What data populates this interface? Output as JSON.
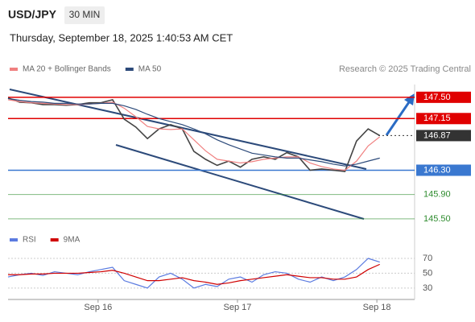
{
  "chart_data": [
    {
      "type": "line",
      "title": "USD/JPY",
      "timeframe": "30 MIN",
      "subtitle": "Thursday, September 18, 2025 1:40:53 AM CET",
      "source": "Research © 2025 Trading Central",
      "x": [
        0,
        4,
        8,
        12,
        16,
        20,
        24,
        28,
        32,
        36,
        40,
        44,
        48,
        52,
        56,
        60,
        64,
        68,
        72,
        76,
        80,
        84,
        88,
        92,
        96,
        100,
        104,
        108,
        112,
        116,
        120,
        124,
        128
      ],
      "xlim": [
        0,
        140
      ],
      "xticks": [
        {
          "value": 31,
          "label": "Sep 16"
        },
        {
          "value": 79,
          "label": "Sep 17"
        },
        {
          "value": 127,
          "label": "Sep 18"
        }
      ],
      "ylim": [
        145.26,
        147.71
      ],
      "series": [
        {
          "color": "#444444",
          "values": [
            147.49,
            147.42,
            147.41,
            147.38,
            147.38,
            147.37,
            147.38,
            147.41,
            147.41,
            147.46,
            147.14,
            147.01,
            146.82,
            146.98,
            147.05,
            146.98,
            146.61,
            146.48,
            146.38,
            146.45,
            146.35,
            146.48,
            146.52,
            146.48,
            146.59,
            146.52,
            146.3,
            146.32,
            146.3,
            146.28,
            146.78,
            146.98,
            146.87
          ]
        },
        {
          "name": "MA 20 + Bollinger Bands",
          "color": "#f08080",
          "values": [
            147.46,
            147.43,
            147.41,
            147.4,
            147.39,
            147.38,
            147.38,
            147.39,
            147.4,
            147.42,
            147.32,
            147.18,
            147.02,
            146.98,
            146.97,
            146.98,
            146.8,
            146.62,
            146.48,
            146.45,
            146.42,
            146.44,
            146.48,
            146.5,
            146.52,
            146.52,
            146.42,
            146.36,
            146.32,
            146.3,
            146.45,
            146.7,
            146.85
          ]
        },
        {
          "name": "MA 50",
          "color": "#2c4a7a",
          "values": [
            147.48,
            147.45,
            147.43,
            147.42,
            147.4,
            147.4,
            147.39,
            147.39,
            147.4,
            147.4,
            147.36,
            147.3,
            147.22,
            147.15,
            147.1,
            147.05,
            146.98,
            146.9,
            146.8,
            146.72,
            146.65,
            146.58,
            146.55,
            146.52,
            146.5,
            146.5,
            146.47,
            146.44,
            146.4,
            146.37,
            146.4,
            146.45,
            146.5
          ]
        }
      ],
      "levels": [
        {
          "value": 147.5,
          "label": "147.50",
          "color": "#e00000",
          "boxed": true
        },
        {
          "value": 147.15,
          "label": "147.15",
          "color": "#e00000",
          "boxed": true
        },
        {
          "value": 146.87,
          "label": "146.87",
          "color": "#333333",
          "boxed": true
        },
        {
          "value": 146.3,
          "label": "146.30",
          "color": "#3a78d0",
          "boxed": true
        },
        {
          "value": 145.9,
          "label": "145.90",
          "color": "#2e8b2e",
          "boxed": false
        },
        {
          "value": 145.5,
          "label": "145.50",
          "color": "#2e8b2e",
          "boxed": false
        }
      ]
    },
    {
      "type": "line",
      "x": [
        0,
        4,
        8,
        12,
        16,
        20,
        24,
        28,
        32,
        36,
        40,
        44,
        48,
        52,
        56,
        60,
        64,
        68,
        72,
        76,
        80,
        84,
        88,
        92,
        96,
        100,
        104,
        108,
        112,
        116,
        120,
        124,
        128
      ],
      "xlim": [
        0,
        140
      ],
      "ylim": [
        19,
        76.5
      ],
      "yticks": [
        30,
        50,
        70
      ],
      "series": [
        {
          "name": "RSI",
          "color": "#5b7be0",
          "values": [
            45,
            48,
            50,
            47,
            52,
            50,
            48,
            52,
            55,
            58,
            40,
            35,
            30,
            45,
            50,
            42,
            30,
            35,
            32,
            42,
            45,
            38,
            48,
            52,
            50,
            42,
            38,
            45,
            40,
            45,
            55,
            70,
            65
          ]
        },
        {
          "name": "9MA",
          "color": "#d00000",
          "values": [
            48,
            48,
            49,
            49,
            50,
            50,
            50,
            51,
            52,
            54,
            50,
            45,
            40,
            40,
            42,
            44,
            40,
            38,
            35,
            37,
            40,
            42,
            44,
            46,
            48,
            46,
            44,
            44,
            42,
            42,
            45,
            55,
            62
          ]
        }
      ]
    }
  ]
}
